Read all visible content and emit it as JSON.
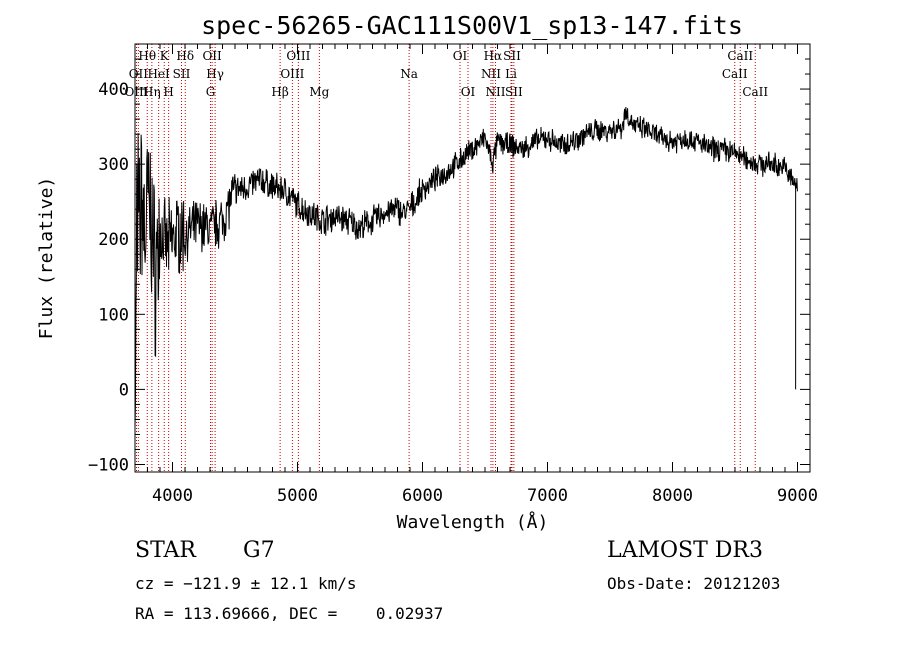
{
  "chart_data": {
    "type": "line",
    "title": "spec-56265-GAC111S00V1_sp13-147.fits",
    "xlabel": "Wavelength (Å)",
    "ylabel": "Flux (relative)",
    "xlim": [
      3700,
      9100
    ],
    "ylim": [
      -110,
      460
    ],
    "x_ticks": [
      4000,
      5000,
      6000,
      7000,
      8000,
      9000
    ],
    "y_ticks": [
      -100,
      0,
      100,
      200,
      300,
      400
    ],
    "spectrum_anchors": {
      "x": [
        3700,
        3720,
        3750,
        3780,
        3800,
        3830,
        3860,
        3900,
        3950,
        4000,
        4050,
        4100,
        4200,
        4300,
        4400,
        4500,
        4600,
        4700,
        4800,
        4900,
        5000,
        5100,
        5200,
        5300,
        5400,
        5500,
        5600,
        5700,
        5800,
        5850,
        5900,
        6000,
        6100,
        6200,
        6300,
        6400,
        6500,
        6560,
        6600,
        6700,
        6800,
        6900,
        7000,
        7100,
        7200,
        7300,
        7400,
        7500,
        7600,
        7620,
        7700,
        7800,
        7900,
        8000,
        8100,
        8200,
        8300,
        8400,
        8500,
        8600,
        8700,
        8800,
        8900,
        8950,
        9000
      ],
      "y": [
        10,
        150,
        260,
        200,
        250,
        230,
        150,
        210,
        190,
        200,
        210,
        205,
        220,
        215,
        225,
        265,
        270,
        280,
        270,
        265,
        245,
        235,
        225,
        230,
        225,
        215,
        225,
        235,
        240,
        235,
        240,
        265,
        280,
        290,
        305,
        320,
        335,
        300,
        330,
        325,
        320,
        330,
        335,
        325,
        330,
        340,
        345,
        345,
        350,
        370,
        350,
        345,
        335,
        330,
        335,
        330,
        320,
        320,
        315,
        305,
        300,
        300,
        295,
        280,
        270
      ]
    },
    "spectral_lines": [
      {
        "name": "Hθ",
        "wave": 3798,
        "row": 0
      },
      {
        "name": "K",
        "wave": 3934,
        "row": 0
      },
      {
        "name": "Hδ",
        "wave": 4102,
        "row": 0
      },
      {
        "name": "OII",
        "wave": 4317,
        "row": 0
      },
      {
        "name": "OIII",
        "wave": 5007,
        "row": 0
      },
      {
        "name": "OI",
        "wave": 6300,
        "row": 0
      },
      {
        "name": "Hα",
        "wave": 6563,
        "row": 0
      },
      {
        "name": "SII",
        "wave": 6716,
        "row": 0
      },
      {
        "name": "CaII",
        "wave": 8542,
        "row": 0
      },
      {
        "name": "OII",
        "wave": 3727,
        "row": 1
      },
      {
        "name": "HeI",
        "wave": 3889,
        "row": 1
      },
      {
        "name": "SII",
        "wave": 4072,
        "row": 1
      },
      {
        "name": "Hγ",
        "wave": 4341,
        "row": 1
      },
      {
        "name": "OIII",
        "wave": 4959,
        "row": 1
      },
      {
        "name": "Na",
        "wave": 5893,
        "row": 1
      },
      {
        "name": "NII",
        "wave": 6548,
        "row": 1
      },
      {
        "name": "Li",
        "wave": 6708,
        "row": 1
      },
      {
        "name": "CaII",
        "wave": 8498,
        "row": 1
      },
      {
        "name": "OIII",
        "wave": 3712,
        "row": 2
      },
      {
        "name": "Hη",
        "wave": 3835,
        "row": 2
      },
      {
        "name": "H",
        "wave": 3969,
        "row": 2
      },
      {
        "name": "G",
        "wave": 4304,
        "row": 2
      },
      {
        "name": "Hβ",
        "wave": 4861,
        "row": 2
      },
      {
        "name": "Mg",
        "wave": 5175,
        "row": 2
      },
      {
        "name": "OI",
        "wave": 6364,
        "row": 2
      },
      {
        "name": "NII",
        "wave": 6584,
        "row": 2
      },
      {
        "name": "SII",
        "wave": 6731,
        "row": 2
      },
      {
        "name": "CaII",
        "wave": 8662,
        "row": 2
      }
    ]
  },
  "info": {
    "object_class": "STAR",
    "subclass": "G7",
    "survey": "LAMOST DR3",
    "cz": "cz = −121.9 ± 12.1 km/s",
    "obs_date": "Obs-Date: 20121203",
    "coords": "RA = 113.69666, DEC =    0.02937"
  },
  "colors": {
    "line_marker": "#cc0000",
    "spectrum": "#000000"
  }
}
